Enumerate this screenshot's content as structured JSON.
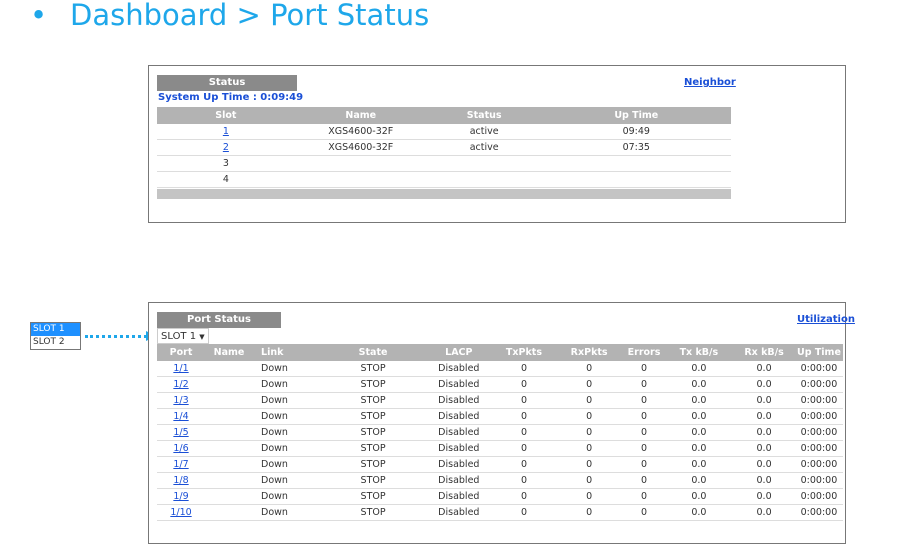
{
  "title": "Dashboard > Port Status",
  "status_panel": {
    "header": "Status",
    "neighbor_link": "Neighbor",
    "system_uptime": "System Up Time : 0:09:49",
    "columns": [
      "Slot",
      "Name",
      "Status",
      "Up Time"
    ],
    "rows": [
      [
        "1",
        "XGS4600-32F",
        "active",
        "09:49"
      ],
      [
        "2",
        "XGS4600-32F",
        "active",
        "07:35"
      ],
      [
        "3",
        "",
        "",
        ""
      ],
      [
        "4",
        "",
        "",
        ""
      ]
    ]
  },
  "port_panel": {
    "header": "Port Status",
    "utilization_link": "Utilization",
    "slot_select": "SLOT 1",
    "slot_options": [
      "SLOT 1",
      "SLOT 2"
    ],
    "columns": [
      "Port",
      "Name",
      "Link",
      "State",
      "LACP",
      "TxPkts",
      "RxPkts",
      "Errors",
      "Tx kB/s",
      "Rx kB/s",
      "Up Time"
    ],
    "rows": [
      [
        "1/1",
        "",
        "Down",
        "STOP",
        "Disabled",
        "0",
        "0",
        "0",
        "0.0",
        "0.0",
        "0:00:00"
      ],
      [
        "1/2",
        "",
        "Down",
        "STOP",
        "Disabled",
        "0",
        "0",
        "0",
        "0.0",
        "0.0",
        "0:00:00"
      ],
      [
        "1/3",
        "",
        "Down",
        "STOP",
        "Disabled",
        "0",
        "0",
        "0",
        "0.0",
        "0.0",
        "0:00:00"
      ],
      [
        "1/4",
        "",
        "Down",
        "STOP",
        "Disabled",
        "0",
        "0",
        "0",
        "0.0",
        "0.0",
        "0:00:00"
      ],
      [
        "1/5",
        "",
        "Down",
        "STOP",
        "Disabled",
        "0",
        "0",
        "0",
        "0.0",
        "0.0",
        "0:00:00"
      ],
      [
        "1/6",
        "",
        "Down",
        "STOP",
        "Disabled",
        "0",
        "0",
        "0",
        "0.0",
        "0.0",
        "0:00:00"
      ],
      [
        "1/7",
        "",
        "Down",
        "STOP",
        "Disabled",
        "0",
        "0",
        "0",
        "0.0",
        "0.0",
        "0:00:00"
      ],
      [
        "1/8",
        "",
        "Down",
        "STOP",
        "Disabled",
        "0",
        "0",
        "0",
        "0.0",
        "0.0",
        "0:00:00"
      ],
      [
        "1/9",
        "",
        "Down",
        "STOP",
        "Disabled",
        "0",
        "0",
        "0",
        "0.0",
        "0.0",
        "0:00:00"
      ],
      [
        "1/10",
        "",
        "Down",
        "STOP",
        "Disabled",
        "0",
        "0",
        "0",
        "0.0",
        "0.0",
        "0:00:00"
      ]
    ]
  },
  "colors": {
    "title": "#1ea7ea",
    "link": "#1a4fd6",
    "header": "#8a8a8a",
    "highlight": "#1e90ff"
  }
}
